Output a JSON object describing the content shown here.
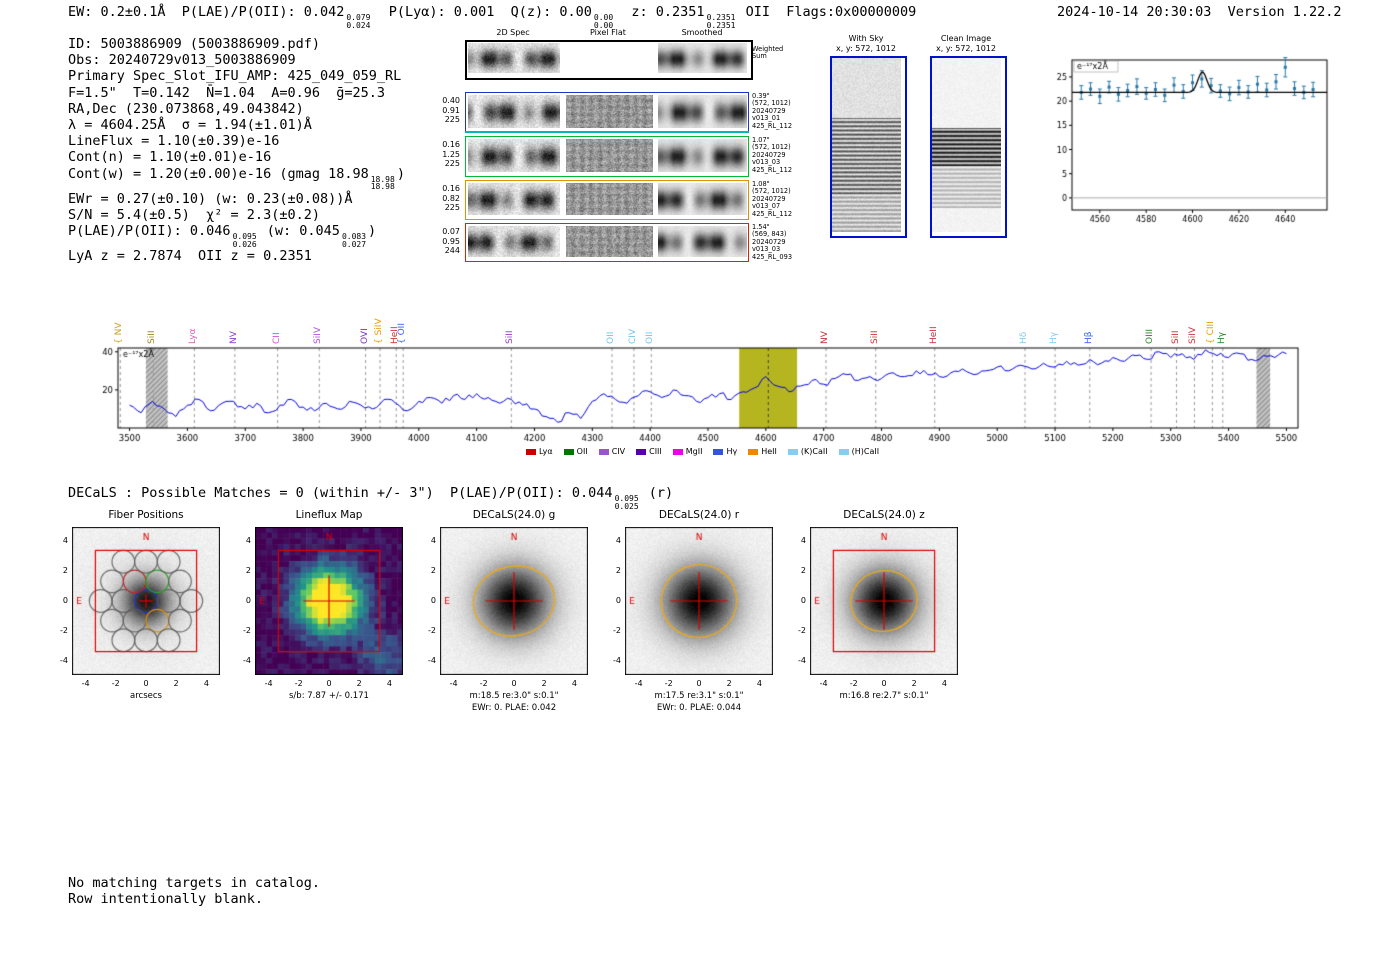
{
  "header": {
    "left": [
      {
        "t": "EW: 0.2±0.1Å  P(LAE)/P(OII): 0.042"
      },
      {
        "hi": "0.079",
        "lo": "0.024"
      },
      {
        "t": "  P(Lyα): 0.001  Q(z): 0.00"
      },
      {
        "hi": "0.00",
        "lo": "0.00"
      },
      {
        "t": "  z: 0.2351"
      },
      {
        "hi": "0.2351",
        "lo": "0.2351"
      },
      {
        "t": " OII  Flags:0x00000009"
      }
    ],
    "timestamp": "2024-10-14 20:30:03  Version 1.22.2"
  },
  "info_lines": [
    [
      {
        "t": "ID: 5003886909 (5003886909.pdf)"
      }
    ],
    [
      {
        "t": "Obs: 20240729v013_5003886909"
      }
    ],
    [
      {
        "t": "Primary Spec_Slot_IFU_AMP: 425_049_059_RL"
      }
    ],
    [
      {
        "t": "F=1.5\"  T=0.142  N̄=1.04  A=0.96  ḡ=25.3"
      }
    ],
    [
      {
        "t": "RA,Dec (230.073868,49.043842)"
      }
    ],
    [
      {
        "t": "λ = 4604.25Å  σ = 1.94(±1.01)Å"
      }
    ],
    [
      {
        "t": "LineFlux = 1.10(±0.39)e-16"
      }
    ],
    [
      {
        "t": "Cont(n) = 1.10(±0.01)e-16"
      }
    ],
    [
      {
        "t": "Cont(w) = 1.20(±0.00)e-16 (gmag 18.98"
      },
      {
        "hi": "18.98",
        "lo": "18.98"
      },
      {
        "t": ")"
      }
    ],
    [
      {
        "t": "EWr = 0.27(±0.10) (w: 0.23(±0.08))Å"
      }
    ],
    [
      {
        "t": "S/N = 5.4(±0.5)  χ² = 2.3(±0.2)"
      }
    ],
    [
      {
        "t": "P(LAE)/P(OII): 0.046"
      },
      {
        "hi": "0.095",
        "lo": "0.026"
      },
      {
        "t": " (w: 0.045"
      },
      {
        "hi": "0.083",
        "lo": "0.027"
      },
      {
        "t": ")"
      }
    ],
    [
      {
        "t": "LyA z = 2.7874  OII z = 0.2351"
      }
    ]
  ],
  "cutouts": {
    "col_titles": [
      "2D Spec",
      "Pixel Flat",
      "Smoothed"
    ],
    "weighted_label": [
      "Weighted",
      "Sum"
    ],
    "rows": [
      {
        "left": [
          "0.40",
          "0.91",
          "225"
        ],
        "right": [
          "0.39\"",
          "(572, 1012)",
          "20240729",
          "v013_01",
          "425_RL_112"
        ],
        "color": "#2233cc"
      },
      {
        "left": [
          "0.16",
          "1.25",
          "225"
        ],
        "right": [
          "1.07\"",
          "(572, 1012)",
          "20240729",
          "v013_03",
          "425_RL_112"
        ],
        "color": "#00bb33"
      },
      {
        "left": [
          "0.16",
          "0.82",
          "225"
        ],
        "right": [
          "1.08\"",
          "(572, 1012)",
          "20240729",
          "v013_07",
          "425_RL_112"
        ],
        "color": "#e09000"
      },
      {
        "left": [
          "0.07",
          "0.95",
          "244"
        ],
        "right": [
          "1.54\"",
          "(569, 843)",
          "20240729",
          "v013_03",
          "425_RL_093"
        ],
        "color": "#dd2200"
      }
    ]
  },
  "sky": {
    "with_sky": {
      "title": "With Sky",
      "coords": "x, y: 572, 1012"
    },
    "clean": {
      "title": "Clean Image",
      "coords": "x, y: 572, 1012"
    }
  },
  "compass": {
    "north": "N",
    "east": "E"
  },
  "axis_ticks": [
    -4,
    -2,
    0,
    2,
    4
  ],
  "chart_data": [
    {
      "type": "scatter",
      "title": "line fit inset",
      "annotation": "e⁻¹⁷x2Å",
      "xlim": [
        4548,
        4658
      ],
      "ylim": [
        -2.5,
        28.5
      ],
      "xticks": [
        4560,
        4580,
        4600,
        4620,
        4640
      ],
      "yticks": [
        0,
        5,
        10,
        15,
        20,
        25
      ],
      "point_color": "#2878a8",
      "x": [
        4552,
        4556,
        4560,
        4564,
        4568,
        4572,
        4576,
        4580,
        4584,
        4588,
        4592,
        4596,
        4600,
        4604,
        4608,
        4612,
        4616,
        4620,
        4624,
        4628,
        4632,
        4636,
        4640,
        4644,
        4648,
        4652
      ],
      "y": [
        21.8,
        22.5,
        21.0,
        22.9,
        21.4,
        22.2,
        23.0,
        21.6,
        22.4,
        21.2,
        23.3,
        22.0,
        23.8,
        24.6,
        23.2,
        22.1,
        21.5,
        22.8,
        21.9,
        23.5,
        22.3,
        24.0,
        27.0,
        22.6,
        21.8,
        22.4
      ],
      "yerr": [
        1.4,
        1.3,
        1.5,
        1.2,
        1.4,
        1.3,
        1.6,
        1.2,
        1.4,
        1.3,
        1.5,
        1.4,
        1.6,
        1.7,
        1.5,
        1.3,
        1.4,
        1.5,
        1.3,
        1.6,
        1.4,
        1.5,
        2.0,
        1.4,
        1.3,
        1.5
      ],
      "fit": {
        "continuum": 21.8,
        "center": 4604.25,
        "sigma": 1.94,
        "amplitude": 4.2
      }
    },
    {
      "type": "line",
      "title": "full spectrum",
      "annotation": "e⁻¹⁷x2Å",
      "xlim": [
        3480,
        5520
      ],
      "ylim": [
        0,
        42
      ],
      "xticks": [
        3500,
        3600,
        3700,
        3800,
        3900,
        4000,
        4100,
        4200,
        4300,
        4400,
        4500,
        4600,
        4700,
        4800,
        4900,
        5000,
        5100,
        5200,
        5300,
        5400,
        5500
      ],
      "yticks": [
        20,
        40
      ],
      "line_color": "#0000dd",
      "detection_wave": 4604.25,
      "highlight_band": {
        "x0": 4554,
        "x1": 4654,
        "color": "#b5b520"
      },
      "hatch_bands": [
        [
          3528,
          3566
        ],
        [
          5448,
          5472
        ]
      ],
      "wave_start": 3500,
      "wave_step": 20,
      "flux": [
        12,
        8,
        14,
        10,
        6,
        12,
        15,
        9,
        13,
        14,
        10,
        13,
        8,
        12,
        15,
        11,
        9,
        13,
        10,
        14,
        12,
        10,
        15,
        13,
        9,
        14,
        16,
        13,
        17,
        15,
        18,
        16,
        13,
        15,
        12,
        10,
        6,
        3,
        8,
        5,
        14,
        18,
        15,
        13,
        17,
        19,
        16,
        20,
        17,
        14,
        16,
        18,
        15,
        19,
        21,
        27,
        22,
        19,
        22,
        25,
        23,
        26,
        28,
        25,
        27,
        26,
        29,
        27,
        30,
        28,
        27,
        29,
        31,
        28,
        30,
        32,
        30,
        33,
        31,
        34,
        32,
        35,
        33,
        36,
        34,
        37,
        35,
        38,
        36,
        40,
        37,
        39,
        36,
        41,
        38,
        37,
        39,
        36,
        38,
        37,
        39
      ],
      "line_labels": [
        {
          "label": "NV",
          "wave": 3484,
          "color": "#c9a227",
          "brace": true
        },
        {
          "label": "SiII",
          "wave": 3541,
          "color": "#a08522"
        },
        {
          "label": "Lyα",
          "wave": 3612,
          "color": "#e060b0"
        },
        {
          "label": "NV",
          "wave": 3682,
          "color": "#9040cc"
        },
        {
          "label": "CII",
          "wave": 3756,
          "color": "#cc50cc"
        },
        {
          "label": "SiIV",
          "wave": 3828,
          "color": "#b050e0"
        },
        {
          "label": "OVI",
          "wave": 3908,
          "color": "#8030b0"
        },
        {
          "label": "SiIV",
          "wave": 3933,
          "color": "#ee9900",
          "brace": true
        },
        {
          "label": "HeII",
          "wave": 3961,
          "color": "#cc3333"
        },
        {
          "label": "OII",
          "wave": 3973,
          "color": "#3366ee",
          "brace": true
        },
        {
          "label": "SiII",
          "wave": 4160,
          "color": "#9040cc"
        },
        {
          "label": "OII",
          "wave": 4334,
          "color": "#74c4e8"
        },
        {
          "label": "CIV",
          "wave": 4372,
          "color": "#74c4e8"
        },
        {
          "label": "OII",
          "wave": 4402,
          "color": "#74c4e8"
        },
        {
          "label": "NV",
          "wave": 4704,
          "color": "#cc3333"
        },
        {
          "label": "SiII",
          "wave": 4790,
          "color": "#cc3333"
        },
        {
          "label": "HeII",
          "wave": 4892,
          "color": "#cc3333"
        },
        {
          "label": "Hδ",
          "wave": 5048,
          "color": "#8cc8f0"
        },
        {
          "label": "Hγ",
          "wave": 5100,
          "color": "#8cc8f0"
        },
        {
          "label": "Hβ",
          "wave": 5160,
          "color": "#3366ee"
        },
        {
          "label": "OIII",
          "wave": 5266,
          "color": "#2a8a2a"
        },
        {
          "label": "SiII",
          "wave": 5310,
          "color": "#cc3333"
        },
        {
          "label": "SiIV",
          "wave": 5341,
          "color": "#cc3333"
        },
        {
          "label": "CIII",
          "wave": 5372,
          "color": "#ee9900",
          "brace": true
        },
        {
          "label": "Hγ",
          "wave": 5390,
          "color": "#2a8a2a"
        }
      ],
      "legend": [
        {
          "label": "Lyα",
          "color": "#cc0000"
        },
        {
          "label": "OII",
          "color": "#007700"
        },
        {
          "label": "CIV",
          "color": "#9955cc"
        },
        {
          "label": "CIII",
          "color": "#5500aa"
        },
        {
          "label": "MgII",
          "color": "#ee00ee"
        },
        {
          "label": "Hγ",
          "color": "#3355dd"
        },
        {
          "label": "HeII",
          "color": "#ee8800"
        },
        {
          "label": "(K)CaII",
          "color": "#88ccee"
        },
        {
          "label": "(H)CaII",
          "color": "#88ccee"
        }
      ]
    }
  ],
  "decals_header": [
    {
      "t": "DECaLS : Possible Matches = 0 (within +/- 3\")  P(LAE)/P(OII): 0.044"
    },
    {
      "hi": "0.095",
      "lo": "0.025"
    },
    {
      "t": " (r)"
    }
  ],
  "panels": [
    {
      "title": "Fiber Positions",
      "caption1": "arcsecs",
      "caption2": ""
    },
    {
      "title": "Lineflux Map",
      "caption1": "s/b: 7.87 +/- 0.171",
      "caption2": ""
    },
    {
      "title": "DECaLS(24.0) g",
      "caption1": "m:18.5 re:3.0\" s:0.1\"",
      "caption2": "EWr: 0. PLAE: 0.042"
    },
    {
      "title": "DECaLS(24.0) r",
      "caption1": "m:17.5 re:3.1\" s:0.1\"",
      "caption2": "EWr: 0. PLAE: 0.044"
    },
    {
      "title": "DECaLS(24.0) z",
      "caption1": "m:16.8 re:2.7\" s:0.1\"",
      "caption2": ""
    }
  ],
  "footer_lines": [
    "No matching targets in catalog.",
    "Row intentionally blank."
  ]
}
